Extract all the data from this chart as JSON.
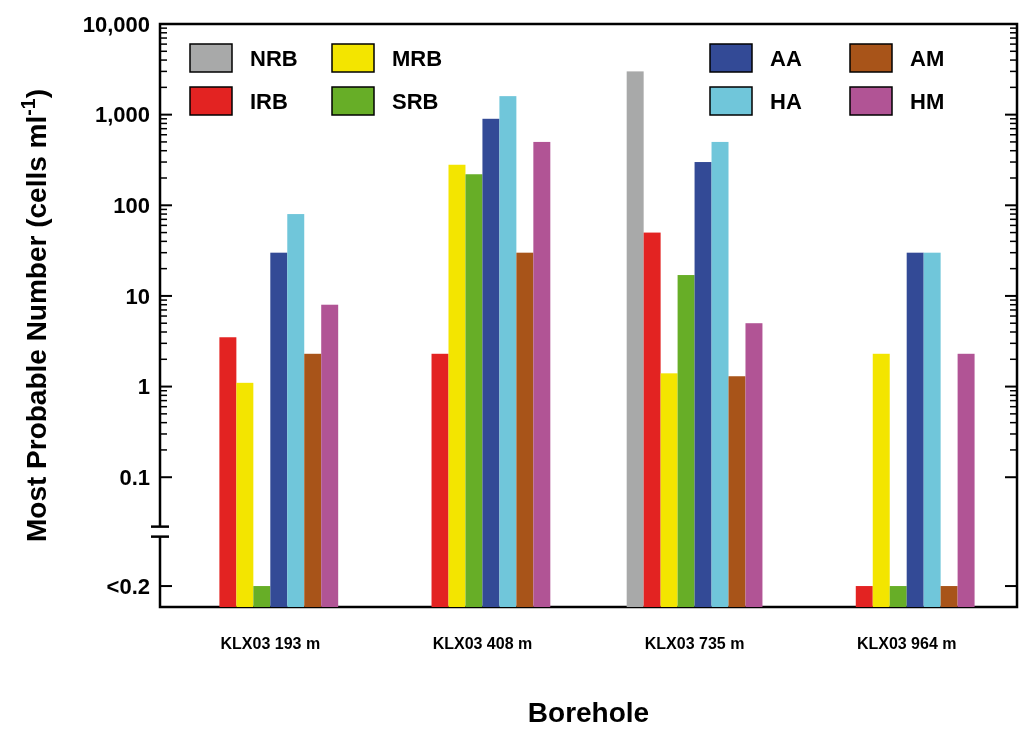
{
  "chart_data": {
    "type": "bar",
    "xlabel": "Borehole",
    "ylabel": "Most Probable Number (cells ml$^{-1}$)",
    "categories": [
      "KLX03 193 m",
      "KLX03 408 m",
      "KLX03 735 m",
      "KLX03 964 m"
    ],
    "log": true,
    "ylim": [
      0.0037,
      10000
    ],
    "yticks": [
      {
        "value": 0.0063,
        "label": "<0.2"
      },
      {
        "value": 0.1,
        "label": "0.1"
      },
      {
        "value": 1,
        "label": "1"
      },
      {
        "value": 10,
        "label": "10"
      },
      {
        "value": 100,
        "label": "100"
      },
      {
        "value": 1000,
        "label": "1,000"
      },
      {
        "value": 10000,
        "label": "10,000"
      }
    ],
    "legend": "top",
    "grid": false,
    "series": [
      {
        "name": "NRB",
        "color": "#a8a9a9",
        "values": [
          null,
          null,
          3000,
          null
        ]
      },
      {
        "name": "IRB",
        "color": "#e32322",
        "values": [
          3.5,
          2.3,
          50,
          0.0063
        ]
      },
      {
        "name": "MRB",
        "color": "#f3e500",
        "values": [
          1.1,
          280,
          1.4,
          2.3
        ]
      },
      {
        "name": "SRB",
        "color": "#67ae27",
        "values": [
          0.0063,
          220,
          17,
          0.0063
        ]
      },
      {
        "name": "AA",
        "color": "#334a96",
        "values": [
          30,
          900,
          300,
          30
        ]
      },
      {
        "name": "HA",
        "color": "#70c6da",
        "values": [
          80,
          1600,
          500,
          30
        ]
      },
      {
        "name": "AM",
        "color": "#a85419",
        "values": [
          2.3,
          30,
          1.3,
          0.0063
        ]
      },
      {
        "name": "HM",
        "color": "#b15495",
        "values": [
          8,
          500,
          5,
          2.3
        ]
      }
    ]
  }
}
